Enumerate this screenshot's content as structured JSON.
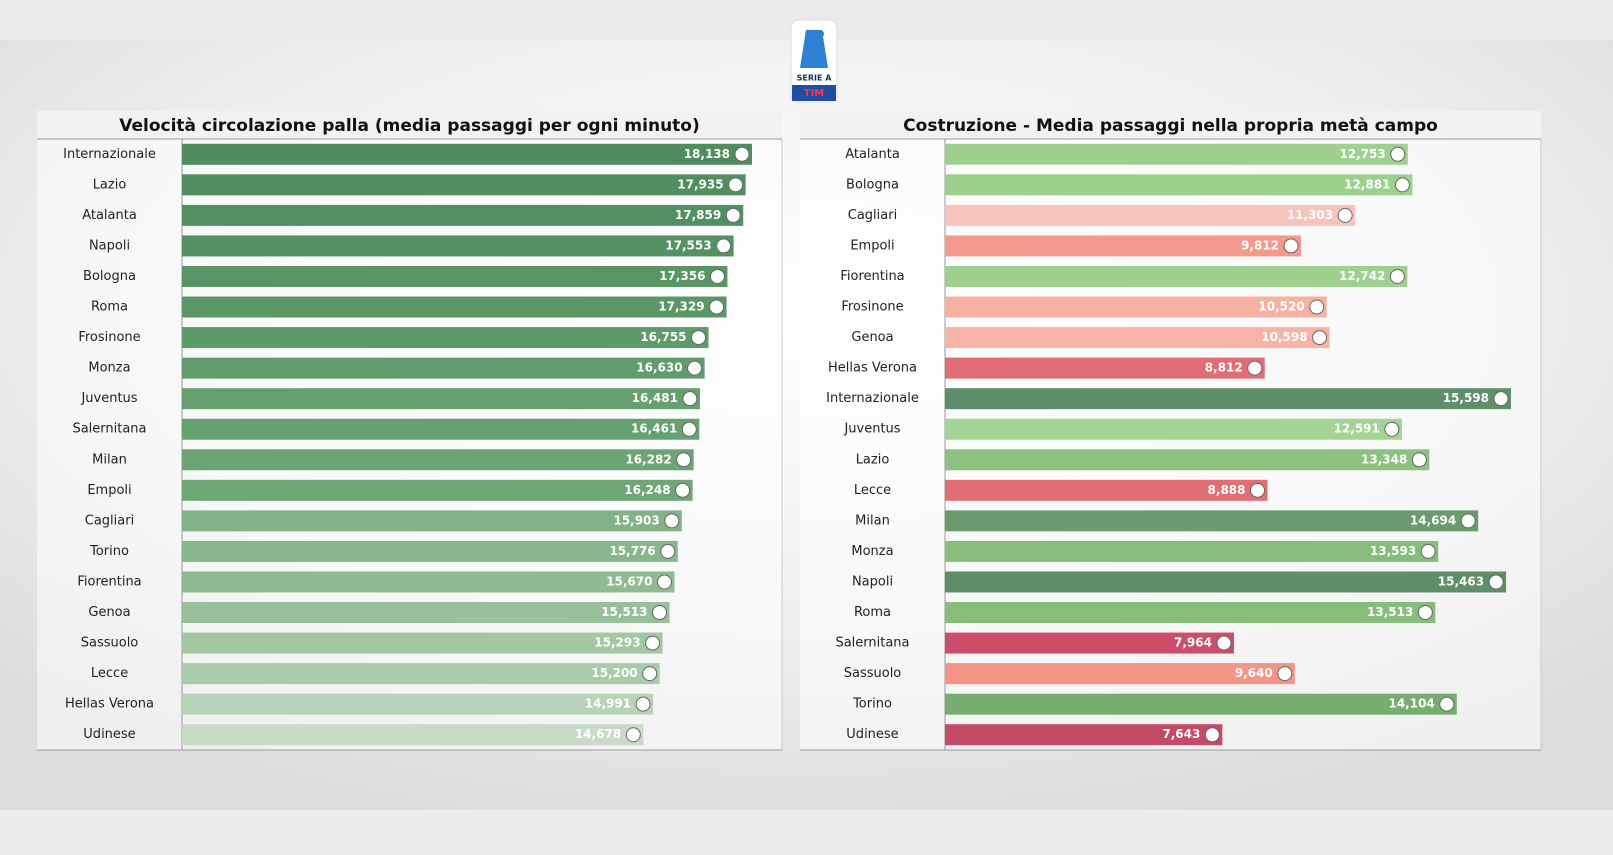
{
  "logo": {
    "top": "SERIE A",
    "bottom": "TIM"
  },
  "chart_data": [
    {
      "type": "bar",
      "orientation": "horizontal",
      "title": "Velocità circolazione palla (media passaggi per ogni minuto)",
      "categories": [
        "Internazionale",
        "Lazio",
        "Atalanta",
        "Napoli",
        "Bologna",
        "Roma",
        "Frosinone",
        "Monza",
        "Juventus",
        "Salernitana",
        "Milan",
        "Empoli",
        "Cagliari",
        "Torino",
        "Fiorentina",
        "Genoa",
        "Sassuolo",
        "Lecce",
        "Hellas Verona",
        "Udinese"
      ],
      "values": [
        18.138,
        17.935,
        17.859,
        17.553,
        17.356,
        17.329,
        16.755,
        16.63,
        16.481,
        16.461,
        16.282,
        16.248,
        15.903,
        15.776,
        15.67,
        15.513,
        15.293,
        15.2,
        14.991,
        14.678
      ],
      "value_labels": [
        "18,138",
        "17,935",
        "17,859",
        "17,553",
        "17,356",
        "17,329",
        "16,755",
        "16,630",
        "16,481",
        "16,461",
        "16,282",
        "16,248",
        "15,903",
        "15,776",
        "15,670",
        "15,513",
        "15,293",
        "15,200",
        "14,991",
        "14,678"
      ],
      "colors": [
        "#4f8d5e",
        "#518f60",
        "#529061",
        "#559263",
        "#589565",
        "#5a9666",
        "#5f9a6a",
        "#629c6c",
        "#66a06f",
        "#68a170",
        "#6ca474",
        "#6fa676",
        "#84b287",
        "#8ab68c",
        "#90ba92",
        "#98bf99",
        "#a3c6a3",
        "#aacba9",
        "#b9d3b8",
        "#c9dbc7"
      ]
    },
    {
      "type": "bar",
      "orientation": "horizontal",
      "title": "Costruzione - Media passaggi nella propria metà campo",
      "categories": [
        "Atalanta",
        "Bologna",
        "Cagliari",
        "Empoli",
        "Fiorentina",
        "Frosinone",
        "Genoa",
        "Hellas Verona",
        "Internazionale",
        "Juventus",
        "Lazio",
        "Lecce",
        "Milan",
        "Monza",
        "Napoli",
        "Roma",
        "Salernitana",
        "Sassuolo",
        "Torino",
        "Udinese"
      ],
      "values": [
        12.753,
        12.881,
        11.303,
        9.812,
        12.742,
        10.52,
        10.598,
        8.812,
        15.598,
        12.591,
        13.348,
        8.888,
        14.694,
        13.593,
        15.463,
        13.513,
        7.964,
        9.64,
        14.104,
        7.643
      ],
      "value_labels": [
        "12,753",
        "12,881",
        "11,303",
        "9,812",
        "12,742",
        "10,520",
        "10,598",
        "8,812",
        "15,598",
        "12,591",
        "13,348",
        "8,888",
        "14,694",
        "13,593",
        "15,463",
        "13,513",
        "7,964",
        "9,640",
        "14,104",
        "7,643"
      ],
      "colors": [
        "#9fd08f",
        "#9dcf8d",
        "#f6c4bc",
        "#f4998c",
        "#9fd08f",
        "#f7b1a3",
        "#f7b4a6",
        "#e06c74",
        "#5e8f6a",
        "#a3d494",
        "#8cc27f",
        "#e06e74",
        "#6a9a6e",
        "#86bd7a",
        "#5f8f68",
        "#86bd7a",
        "#cc4e68",
        "#f39486",
        "#78ad72",
        "#c44b66"
      ]
    }
  ]
}
